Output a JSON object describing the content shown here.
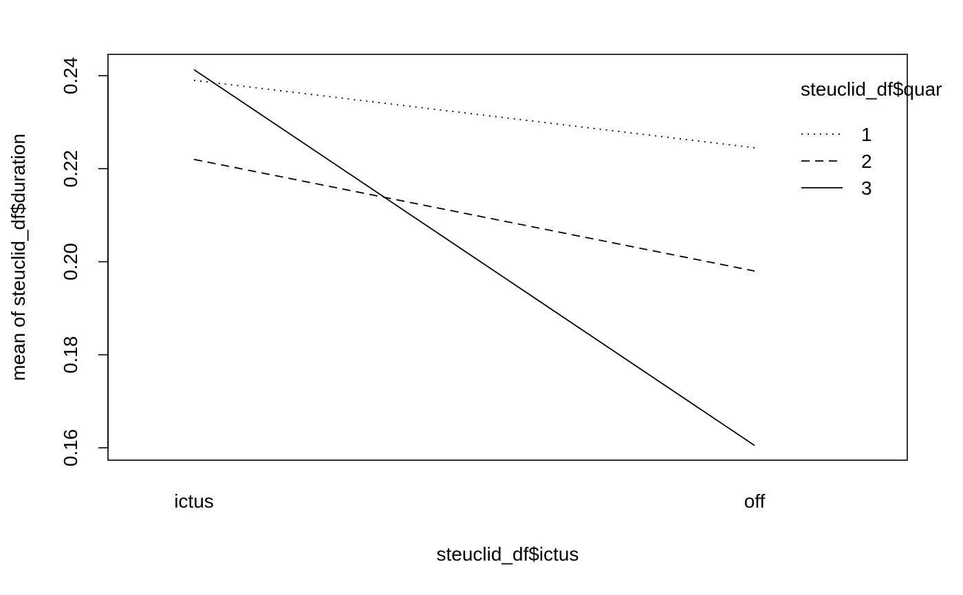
{
  "chart_data": {
    "type": "line",
    "title": "",
    "xlabel": "steuclid_df$ictus",
    "ylabel": "mean of  steuclid_df$duration",
    "categories": [
      "ictus",
      "off"
    ],
    "ylim": [
      0.1575,
      0.2445
    ],
    "yticks": [
      0.16,
      0.18,
      0.2,
      0.22,
      0.24
    ],
    "ytick_labels": [
      "0.16",
      "0.18",
      "0.20",
      "0.22",
      "0.24"
    ],
    "grid": false,
    "legend_title": "steuclid_df$quar",
    "legend_position": "top-right",
    "series": [
      {
        "name": "1",
        "values": [
          0.239,
          0.2245
        ],
        "line_style": "dotted"
      },
      {
        "name": "2",
        "values": [
          0.222,
          0.198
        ],
        "line_style": "dashed"
      },
      {
        "name": "3",
        "values": [
          0.2413,
          0.1605
        ],
        "line_style": "solid"
      }
    ],
    "colors": {
      "line": "#000000",
      "background": "#ffffff"
    }
  }
}
